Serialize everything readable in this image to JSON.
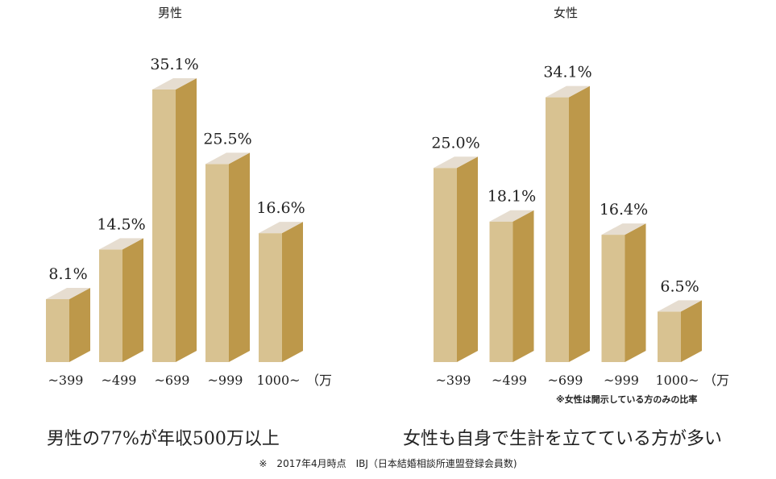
{
  "chart_data": [
    {
      "type": "bar",
      "title": "男性",
      "categories": [
        "~399",
        "~499",
        "~699",
        "~999",
        "1000~"
      ],
      "values": [
        8.1,
        14.5,
        35.1,
        25.5,
        16.6
      ],
      "labels": [
        "8.1%",
        "14.5%",
        "35.1%",
        "25.5%",
        "16.6%"
      ],
      "unit_label": "（万",
      "caption": "男性の77%が年収500万以上"
    },
    {
      "type": "bar",
      "title": "女性",
      "categories": [
        "~399",
        "~499",
        "~699",
        "~999",
        "1000~"
      ],
      "values": [
        25.0,
        18.1,
        34.1,
        16.4,
        6.5
      ],
      "labels": [
        "25.0%",
        "18.1%",
        "34.1%",
        "16.4%",
        "6.5%"
      ],
      "unit_label": "（万",
      "note": "※女性は開示している方のみの比率",
      "caption": "女性も自身で生計を立てている方が多い"
    }
  ],
  "footer": "※　2017年4月時点　IBJ（日本結婚相談所連盟登録会員数)",
  "colors": {
    "top": "#e6ddd0",
    "front": "#d8c291",
    "side": "#bd984a"
  }
}
